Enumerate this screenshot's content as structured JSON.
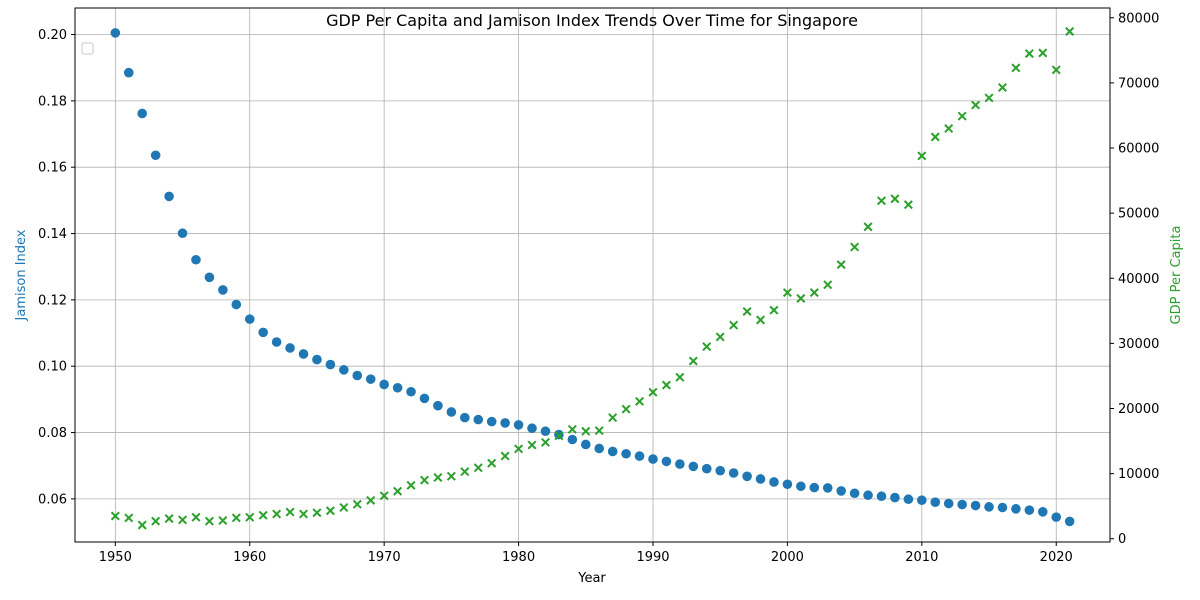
{
  "chart_data": {
    "type": "scatter",
    "title": "GDP Per Capita and Jamison Index Trends Over Time for Singapore",
    "xlabel": "Year",
    "ylabel_left": "Jamison Index",
    "ylabel_right": "GDP Per Capita",
    "xlim": [
      1947,
      2024
    ],
    "ylim_left": [
      0.047,
      0.208
    ],
    "ylim_right": [
      -500,
      81500
    ],
    "x_ticks": [
      1950,
      1960,
      1970,
      1980,
      1990,
      2000,
      2010,
      2020
    ],
    "y_left_ticks": [
      "0.06",
      "0.08",
      "0.10",
      "0.12",
      "0.14",
      "0.16",
      "0.18",
      "0.20"
    ],
    "y_left_tick_values": [
      0.06,
      0.08,
      0.1,
      0.12,
      0.14,
      0.16,
      0.18,
      0.2
    ],
    "y_right_ticks": [
      "0",
      "10000",
      "20000",
      "30000",
      "40000",
      "50000",
      "60000",
      "70000",
      "80000"
    ],
    "y_right_tick_values": [
      0,
      10000,
      20000,
      30000,
      40000,
      50000,
      60000,
      70000,
      80000
    ],
    "grid": true,
    "legend": "top-left (empty)",
    "colors": {
      "jamison": "#1f77b4",
      "gdp": "#2ca02c"
    },
    "x": [
      1950,
      1951,
      1952,
      1953,
      1954,
      1955,
      1956,
      1957,
      1958,
      1959,
      1960,
      1961,
      1962,
      1963,
      1964,
      1965,
      1966,
      1967,
      1968,
      1969,
      1970,
      1971,
      1972,
      1973,
      1974,
      1975,
      1976,
      1977,
      1978,
      1979,
      1980,
      1981,
      1982,
      1983,
      1984,
      1985,
      1986,
      1987,
      1988,
      1989,
      1990,
      1991,
      1992,
      1993,
      1994,
      1995,
      1996,
      1997,
      1998,
      1999,
      2000,
      2001,
      2002,
      2003,
      2004,
      2005,
      2006,
      2007,
      2008,
      2009,
      2010,
      2011,
      2012,
      2013,
      2014,
      2015,
      2016,
      2017,
      2018,
      2019,
      2020,
      2021
    ],
    "series": [
      {
        "axis": "left",
        "marker": "circle",
        "values": [
          0.2005,
          0.1885,
          0.1762,
          0.1636,
          0.1512,
          0.1401,
          0.1321,
          0.1268,
          0.123,
          0.1186,
          0.1142,
          0.1102,
          0.1073,
          0.1055,
          0.1037,
          0.102,
          0.1005,
          0.0989,
          0.0972,
          0.0961,
          0.0945,
          0.0935,
          0.0923,
          0.0903,
          0.0881,
          0.0862,
          0.0845,
          0.0839,
          0.0833,
          0.0829,
          0.0823,
          0.0813,
          0.0804,
          0.0794,
          0.0779,
          0.0764,
          0.0752,
          0.0743,
          0.0736,
          0.0729,
          0.072,
          0.0713,
          0.0705,
          0.0698,
          0.0691,
          0.0685,
          0.0678,
          0.0668,
          0.066,
          0.0651,
          0.0644,
          0.0638,
          0.0634,
          0.0633,
          0.0624,
          0.0617,
          0.0611,
          0.0608,
          0.0604,
          0.0599,
          0.0596,
          0.059,
          0.0586,
          0.0583,
          0.058,
          0.0576,
          0.0574,
          0.057,
          0.0566,
          0.0561,
          0.0545,
          0.0532
        ]
      },
      {
        "axis": "right",
        "marker": "x",
        "values": [
          3500,
          3200,
          2100,
          2700,
          3100,
          2900,
          3300,
          2700,
          2800,
          3200,
          3300,
          3600,
          3800,
          4100,
          3800,
          4000,
          4300,
          4800,
          5300,
          5900,
          6600,
          7300,
          8200,
          9000,
          9400,
          9600,
          10300,
          10900,
          11600,
          12700,
          13800,
          14400,
          14800,
          15800,
          16800,
          16500,
          16600,
          18600,
          19900,
          21100,
          22500,
          23600,
          24800,
          27300,
          29500,
          31000,
          32800,
          34900,
          33600,
          35100,
          37800,
          36900,
          37800,
          39000,
          42100,
          44800,
          47900,
          51900,
          52200,
          51300,
          58800,
          61700,
          63000,
          64900,
          66600,
          67700,
          69300,
          72300,
          74500,
          74600,
          72000,
          77900
        ]
      }
    ]
  }
}
